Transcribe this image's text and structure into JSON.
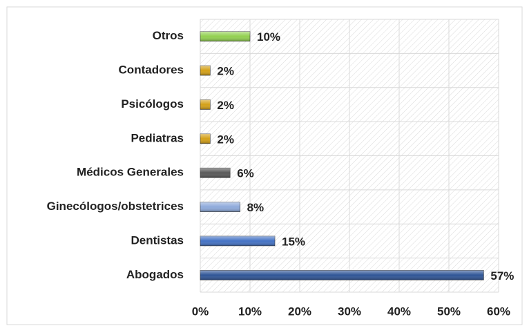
{
  "chart_data": {
    "type": "bar",
    "orientation": "horizontal",
    "categories": [
      "Otros",
      "Contadores",
      "Psicólogos",
      "Pediatras",
      "Médicos Generales",
      "Ginecólogos/obstetrices",
      "Dentistas",
      "Abogados"
    ],
    "values": [
      10,
      2,
      2,
      2,
      6,
      8,
      15,
      57
    ],
    "value_labels": [
      "10%",
      "2%",
      "2%",
      "2%",
      "6%",
      "8%",
      "15%",
      "57%"
    ],
    "colors": [
      "#92d050",
      "#d4a017",
      "#d4a017",
      "#d4a017",
      "#595959",
      "#8eaadb",
      "#4472c4",
      "#2f5597"
    ],
    "xlim": [
      0,
      60
    ],
    "xticks": [
      {
        "value": 0,
        "label": "0%"
      },
      {
        "value": 10,
        "label": "10%"
      },
      {
        "value": 20,
        "label": "20%"
      },
      {
        "value": 30,
        "label": "30%"
      },
      {
        "value": 40,
        "label": "40%"
      },
      {
        "value": 50,
        "label": "50%"
      },
      {
        "value": 60,
        "label": "60%"
      }
    ],
    "grid": true
  }
}
